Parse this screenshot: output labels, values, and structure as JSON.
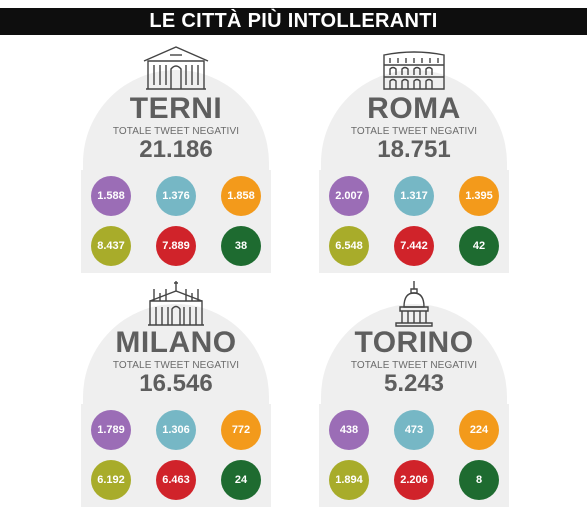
{
  "title": "LE CITTÀ PIÙ INTOLLERANTI",
  "caption": "TOTALE TWEET NEGATIVI",
  "colors": {
    "purple": "#9b6db6",
    "teal": "#76b7c5",
    "orange": "#f39a1b",
    "olive": "#a8ac2a",
    "red": "#d0232a",
    "darkgreen": "#1e6b30"
  },
  "chart_data": {
    "type": "table",
    "title": "LE CITTÀ PIÙ INTOLLERANTI",
    "cities": [
      {
        "name": "TERNI",
        "icon": "terni-building-icon",
        "total": "21.186",
        "values": [
          "1.588",
          "1.376",
          "1.858",
          "8.437",
          "7.889",
          "38"
        ]
      },
      {
        "name": "ROMA",
        "icon": "colosseum-icon",
        "total": "18.751",
        "values": [
          "2.007",
          "1.317",
          "1.395",
          "6.548",
          "7.442",
          "42"
        ]
      },
      {
        "name": "MILANO",
        "icon": "milan-cathedral-icon",
        "total": "16.546",
        "values": [
          "1.789",
          "1.306",
          "772",
          "6.192",
          "6.463",
          "24"
        ]
      },
      {
        "name": "TORINO",
        "icon": "mole-antonelliana-icon",
        "total": "5.243",
        "values": [
          "438",
          "473",
          "224",
          "1.894",
          "2.206",
          "8"
        ]
      }
    ],
    "bubble_colors": [
      "#9b6db6",
      "#76b7c5",
      "#f39a1b",
      "#a8ac2a",
      "#d0232a",
      "#1e6b30"
    ]
  }
}
